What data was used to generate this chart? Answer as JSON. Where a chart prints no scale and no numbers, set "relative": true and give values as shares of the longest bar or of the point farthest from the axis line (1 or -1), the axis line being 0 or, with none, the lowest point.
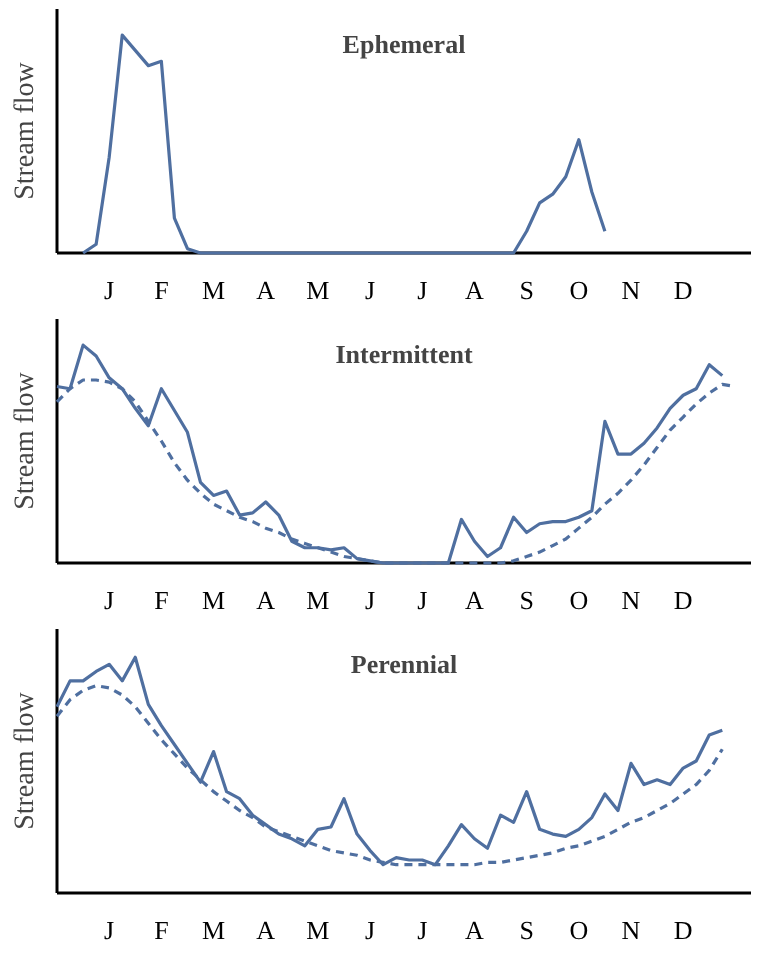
{
  "chart_data": [
    {
      "type": "line",
      "title": "Ephemeral",
      "ylabel": "Stream flow",
      "relative": true,
      "grid": false,
      "marker": "none",
      "categories": [
        null,
        null,
        null,
        null,
        "J",
        null,
        null,
        null,
        "F",
        null,
        null,
        null,
        "M",
        null,
        null,
        null,
        "A",
        null,
        null,
        null,
        "M",
        null,
        null,
        null,
        "J",
        null,
        null,
        null,
        "J",
        null,
        null,
        null,
        "A",
        null,
        null,
        null,
        "S",
        null,
        null,
        null,
        "O",
        null,
        null,
        null,
        "N",
        null,
        null,
        null,
        "D",
        null,
        null,
        null,
        null,
        null
      ],
      "series": [
        {
          "color": "#4f6fa0",
          "line_style": "solid",
          "values": [
            null,
            null,
            0,
            0.04,
            0.44,
            1.0,
            0.93,
            0.86,
            0.88,
            0.16,
            0.02,
            0,
            0,
            0,
            0,
            0,
            0,
            0,
            0,
            0,
            0,
            0,
            0,
            0,
            0,
            0,
            0,
            0,
            0,
            0,
            0,
            0,
            0,
            0,
            0,
            0,
            0.1,
            0.23,
            0.27,
            0.35,
            0.52,
            0.28,
            0.1,
            null,
            null,
            null,
            null,
            null,
            null,
            null,
            null,
            null,
            null,
            null
          ]
        }
      ]
    },
    {
      "type": "line",
      "title": "Intermittent",
      "ylabel": "Stream flow",
      "relative": true,
      "grid": false,
      "marker": "none",
      "categories": [
        null,
        null,
        null,
        null,
        "J",
        null,
        null,
        null,
        "F",
        null,
        null,
        null,
        "M",
        null,
        null,
        null,
        "A",
        null,
        null,
        null,
        "M",
        null,
        null,
        null,
        "J",
        null,
        null,
        null,
        "J",
        null,
        null,
        null,
        "A",
        null,
        null,
        null,
        "S",
        null,
        null,
        null,
        "O",
        null,
        null,
        null,
        "N",
        null,
        null,
        null,
        "D",
        null,
        null,
        null,
        null,
        null
      ],
      "series": [
        {
          "color": "#4f6fa0",
          "line_style": "solid",
          "values": [
            0.81,
            0.8,
            1.0,
            0.95,
            0.85,
            0.8,
            0.71,
            0.63,
            0.8,
            0.7,
            0.6,
            0.37,
            0.31,
            0.33,
            0.22,
            0.23,
            0.28,
            0.22,
            0.1,
            0.07,
            0.07,
            0.06,
            0.07,
            0.02,
            0.01,
            0,
            0,
            0,
            0,
            0,
            0,
            0.2,
            0.1,
            0.03,
            0.07,
            0.21,
            0.14,
            0.18,
            0.19,
            0.19,
            0.21,
            0.24,
            0.65,
            0.5,
            0.5,
            0.55,
            0.62,
            0.71,
            0.77,
            0.8,
            0.91,
            0.86,
            null,
            null
          ]
        },
        {
          "color": "#4f6fa0",
          "line_style": "dashed",
          "values": [
            0.74,
            0.8,
            0.84,
            0.84,
            0.83,
            0.8,
            0.74,
            0.65,
            0.56,
            0.46,
            0.38,
            0.32,
            0.27,
            0.24,
            0.21,
            0.19,
            0.16,
            0.14,
            0.11,
            0.09,
            0.07,
            0.05,
            0.03,
            0.02,
            0.01,
            0,
            0,
            0,
            0,
            0,
            0,
            0,
            0,
            0,
            0,
            0.01,
            0.03,
            0.05,
            0.08,
            0.11,
            0.16,
            0.21,
            0.27,
            0.32,
            0.38,
            0.45,
            0.53,
            0.61,
            0.67,
            0.73,
            0.78,
            0.82,
            0.81,
            null
          ]
        }
      ]
    },
    {
      "type": "line",
      "title": "Perennial",
      "ylabel": "Stream flow",
      "relative": true,
      "grid": false,
      "marker": "none",
      "categories": [
        null,
        null,
        null,
        null,
        "J",
        null,
        null,
        null,
        "F",
        null,
        null,
        null,
        "M",
        null,
        null,
        null,
        "A",
        null,
        null,
        null,
        "M",
        null,
        null,
        null,
        "J",
        null,
        null,
        null,
        "J",
        null,
        null,
        null,
        "A",
        null,
        null,
        null,
        "S",
        null,
        null,
        null,
        "O",
        null,
        null,
        null,
        "N",
        null,
        null,
        null,
        "D",
        null,
        null,
        null,
        null,
        null
      ],
      "series": [
        {
          "color": "#4f6fa0",
          "line_style": "solid",
          "values": [
            0.79,
            0.9,
            0.9,
            0.94,
            0.97,
            0.9,
            1.0,
            0.8,
            0.71,
            0.63,
            0.55,
            0.47,
            0.6,
            0.43,
            0.4,
            0.33,
            0.29,
            0.25,
            0.23,
            0.2,
            0.27,
            0.28,
            0.4,
            0.25,
            0.18,
            0.12,
            0.15,
            0.14,
            0.14,
            0.12,
            0.2,
            0.29,
            0.23,
            0.19,
            0.33,
            0.3,
            0.43,
            0.27,
            0.25,
            0.24,
            0.27,
            0.32,
            0.42,
            0.35,
            0.55,
            0.46,
            0.48,
            0.46,
            0.53,
            0.56,
            0.67,
            0.69,
            null,
            null
          ]
        },
        {
          "color": "#4f6fa0",
          "line_style": "dashed",
          "values": [
            0.75,
            0.82,
            0.86,
            0.88,
            0.87,
            0.84,
            0.79,
            0.72,
            0.65,
            0.59,
            0.53,
            0.48,
            0.43,
            0.39,
            0.35,
            0.32,
            0.28,
            0.26,
            0.24,
            0.22,
            0.2,
            0.18,
            0.17,
            0.16,
            0.14,
            0.13,
            0.12,
            0.12,
            0.12,
            0.12,
            0.12,
            0.12,
            0.12,
            0.13,
            0.13,
            0.14,
            0.15,
            0.16,
            0.17,
            0.19,
            0.2,
            0.22,
            0.24,
            0.27,
            0.3,
            0.32,
            0.35,
            0.38,
            0.42,
            0.46,
            0.52,
            0.61,
            null,
            null
          ]
        }
      ]
    }
  ]
}
